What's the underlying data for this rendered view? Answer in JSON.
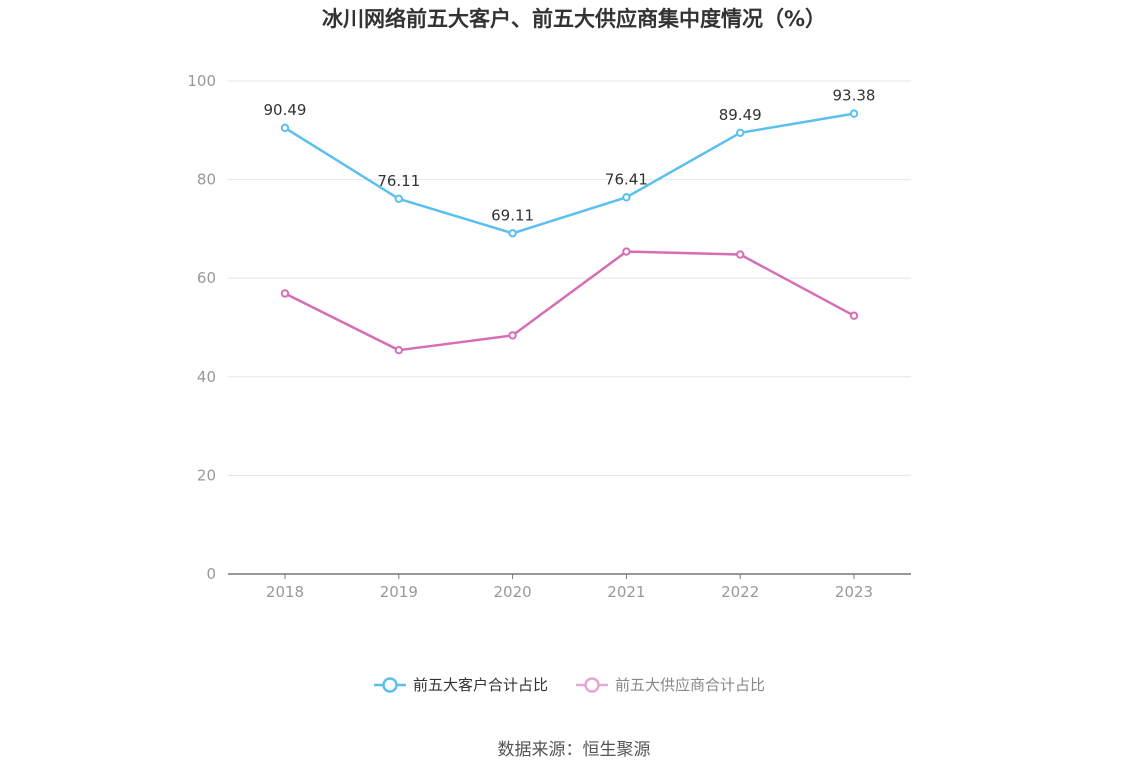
{
  "chart_data": {
    "type": "line",
    "title": "冰川网络前五大客户、前五大供应商集中度情况（%）",
    "categories": [
      "2018",
      "2019",
      "2020",
      "2021",
      "2022",
      "2023"
    ],
    "ylim": [
      0,
      100
    ],
    "yticks": [
      "0",
      "20",
      "40",
      "60",
      "80",
      "100"
    ],
    "grid": true,
    "legend_position": "bottom",
    "series": [
      {
        "name": "前五大客户合计占比",
        "color": "#5bbfef",
        "values": [
          90.49,
          76.11,
          69.11,
          76.41,
          89.49,
          93.38
        ],
        "labels": [
          "90.49",
          "76.11",
          "69.11",
          "76.41",
          "89.49",
          "93.38"
        ],
        "show_labels": true
      },
      {
        "name": "前五大供应商合计占比",
        "color": "#d66eb6",
        "legend_color": "#e8a6d2",
        "values": [
          56.9,
          45.4,
          48.4,
          65.4,
          64.8,
          52.4
        ],
        "show_labels": false
      }
    ]
  },
  "source": "数据来源：恒生聚源"
}
